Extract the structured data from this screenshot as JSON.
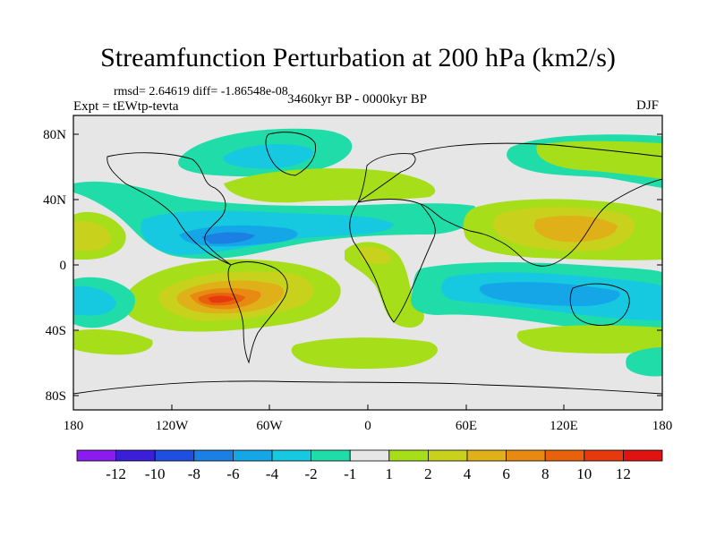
{
  "title": "Streamfunction Perturbation at 200 hPa (km2/s)",
  "stats": "rmsd= 2.64619  diff= -1.86548e-08",
  "experiment": "Expt = tEWtp-tevta",
  "period": "3460kyr BP - 0000kyr BP",
  "season": "DJF",
  "y_tick_labels": [
    "80N",
    "40N",
    "0",
    "40S",
    "80S"
  ],
  "x_tick_labels": [
    "180",
    "120W",
    "60W",
    "0",
    "60E",
    "120E",
    "180"
  ],
  "colorbar": {
    "labels": [
      "-12",
      "-10",
      "-8",
      "-6",
      "-4",
      "-2",
      "-1",
      "1",
      "2",
      "4",
      "6",
      "8",
      "10",
      "12"
    ],
    "colors": [
      "#8a1cf0",
      "#3a1ed8",
      "#1f4fe0",
      "#1b7fe4",
      "#14a6e6",
      "#16c8e0",
      "#20dca8",
      "#e6e6e6",
      "#a6de1a",
      "#c8d21c",
      "#e0b018",
      "#e88a12",
      "#e8620c",
      "#e63a0e",
      "#e01212"
    ]
  }
}
